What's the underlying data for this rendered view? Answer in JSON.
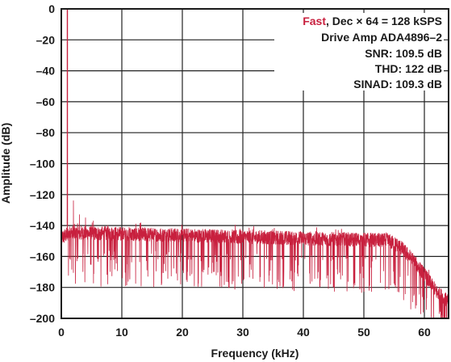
{
  "chart_data": {
    "type": "line",
    "title": "",
    "xlabel": "Frequency (kHz)",
    "ylabel": "Amplitude (dB)",
    "xlim": [
      0,
      64
    ],
    "ylim": [
      -200,
      0
    ],
    "xticks": [
      0,
      10,
      20,
      30,
      40,
      50,
      60
    ],
    "yticks": [
      0,
      -20,
      -40,
      -60,
      -80,
      -100,
      -120,
      -140,
      -160,
      -180,
      -200
    ],
    "xtick_labels": [
      "0",
      "10",
      "20",
      "30",
      "40",
      "50",
      "60"
    ],
    "ytick_labels": [
      "0",
      "–20",
      "–40",
      "–60",
      "–80",
      "–100",
      "–120",
      "–140",
      "–160",
      "–180",
      "–200"
    ],
    "grid": true,
    "line_color": "#c8203e",
    "annotation": {
      "line1_accent": "Fast",
      "line1_rest": ", Dec × 64 = 128 kSPS",
      "line2": "Drive Amp ADA4896–2",
      "line3": "SNR: 109.5 dB",
      "line4": "THD: 122 dB",
      "line5": "SINAD: 109.3 dB"
    },
    "series": [
      {
        "noise_floor_db": -152,
        "fundamental": {
          "x": 1.0,
          "y": 0
        },
        "spurs": [
          {
            "x": 2.0,
            "y": -124
          },
          {
            "x": 3.0,
            "y": -133
          },
          {
            "x": 4.0,
            "y": -135
          },
          {
            "x": 5.3,
            "y": -137
          }
        ],
        "rolloff": [
          {
            "x": 0,
            "y": -148
          },
          {
            "x": 1.5,
            "y": -145
          },
          {
            "x": 54,
            "y": -150
          },
          {
            "x": 56,
            "y": -154
          },
          {
            "x": 58,
            "y": -162
          },
          {
            "x": 60,
            "y": -172
          },
          {
            "x": 62,
            "y": -183
          },
          {
            "x": 64,
            "y": -190
          }
        ]
      }
    ]
  }
}
